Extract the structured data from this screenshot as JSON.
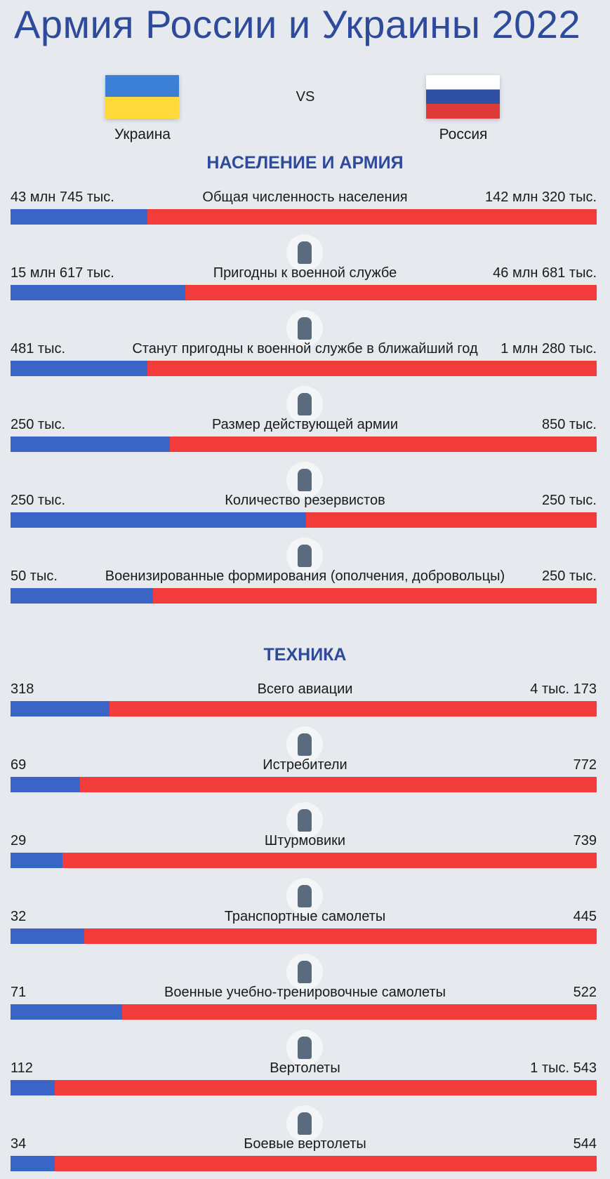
{
  "header": {
    "title": "Армия России и Украины 2022",
    "left": "Украина",
    "vs": "VS",
    "right": "Россия"
  },
  "sections": [
    {
      "heading": "НАСЕЛЕНИЕ И АРМИЯ",
      "rows": [
        {
          "label": "Общая численность населения",
          "left": "43 млн 745 тыс.",
          "right": "142 млн 320 тыс."
        },
        {
          "label": "Пригодны к военной службе",
          "left": "15 млн 617 тыс.",
          "right": "46 млн 681 тыс."
        },
        {
          "label": "Станут пригодны к военной службе в ближайший год",
          "left": "481 тыс.",
          "right": "1 млн 280 тыс."
        },
        {
          "label": "Размер действующей армии",
          "left": "250 тыс.",
          "right": "850 тыс."
        },
        {
          "label": "Количество резервистов",
          "left": "250 тыс.",
          "right": "250 тыс."
        },
        {
          "label": "Военизированные формирования (ополчения, добровольцы)",
          "left": "50 тыс.",
          "right": "250 тыс."
        }
      ]
    },
    {
      "heading": "ТЕХНИКА",
      "rows": [
        {
          "label": "Всего авиации",
          "left": "318",
          "right": "4 тыс. 173"
        },
        {
          "label": "Истребители",
          "left": "69",
          "right": "772"
        },
        {
          "label": "Штурмовики",
          "left": "29",
          "right": "739"
        },
        {
          "label": "Транспортные самолеты",
          "left": "32",
          "right": "445"
        },
        {
          "label": "Военные учебно-тренировочные самолеты",
          "left": "71",
          "right": "522"
        },
        {
          "label": "Вертолеты",
          "left": "112",
          "right": "1 тыс. 543"
        },
        {
          "label": "Боевые вертолеты",
          "left": "34",
          "right": "544"
        }
      ]
    }
  ]
}
